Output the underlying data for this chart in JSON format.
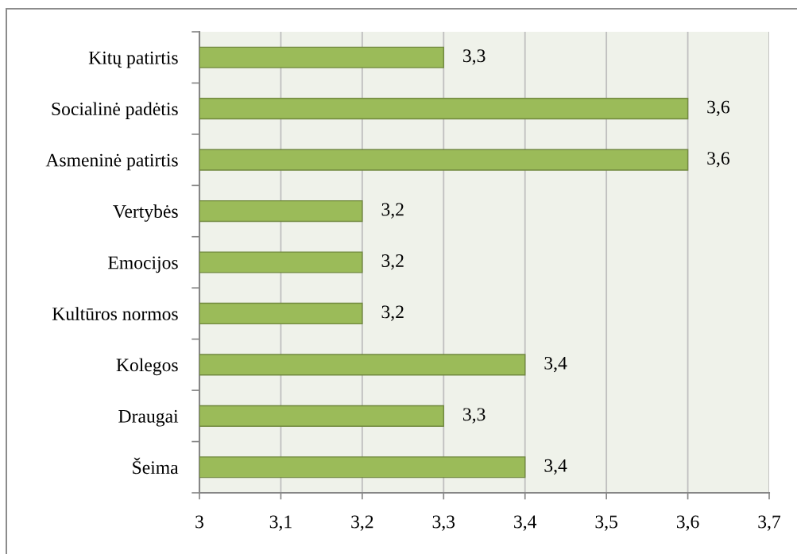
{
  "chart_data": {
    "type": "bar",
    "orientation": "horizontal",
    "categories": [
      "Kitų patirtis",
      "Socialinė padėtis",
      "Asmeninė patirtis",
      "Vertybės",
      "Emocijos",
      "Kultūros normos",
      "Kolegos",
      "Draugai",
      "Šeima"
    ],
    "values": [
      3.3,
      3.6,
      3.6,
      3.2,
      3.2,
      3.2,
      3.4,
      3.3,
      3.4
    ],
    "value_labels": [
      "3,3",
      "3,6",
      "3,6",
      "3,2",
      "3,2",
      "3,2",
      "3,4",
      "3,3",
      "3,4"
    ],
    "color": "#9bbb59",
    "xlim": [
      3,
      3.7
    ],
    "xticks": [
      3,
      {
        "value": 3.1,
        "label": "3,1"
      },
      {
        "value": 3.2,
        "label": "3,2"
      },
      {
        "value": 3.3,
        "label": "3,3"
      },
      {
        "value": 3.4,
        "label": "3,4"
      },
      {
        "value": 3.5,
        "label": "3,5"
      },
      {
        "value": 3.6,
        "label": "3,6"
      },
      {
        "value": 3.7,
        "label": "3,7"
      }
    ],
    "grid": "x",
    "legend": false
  }
}
